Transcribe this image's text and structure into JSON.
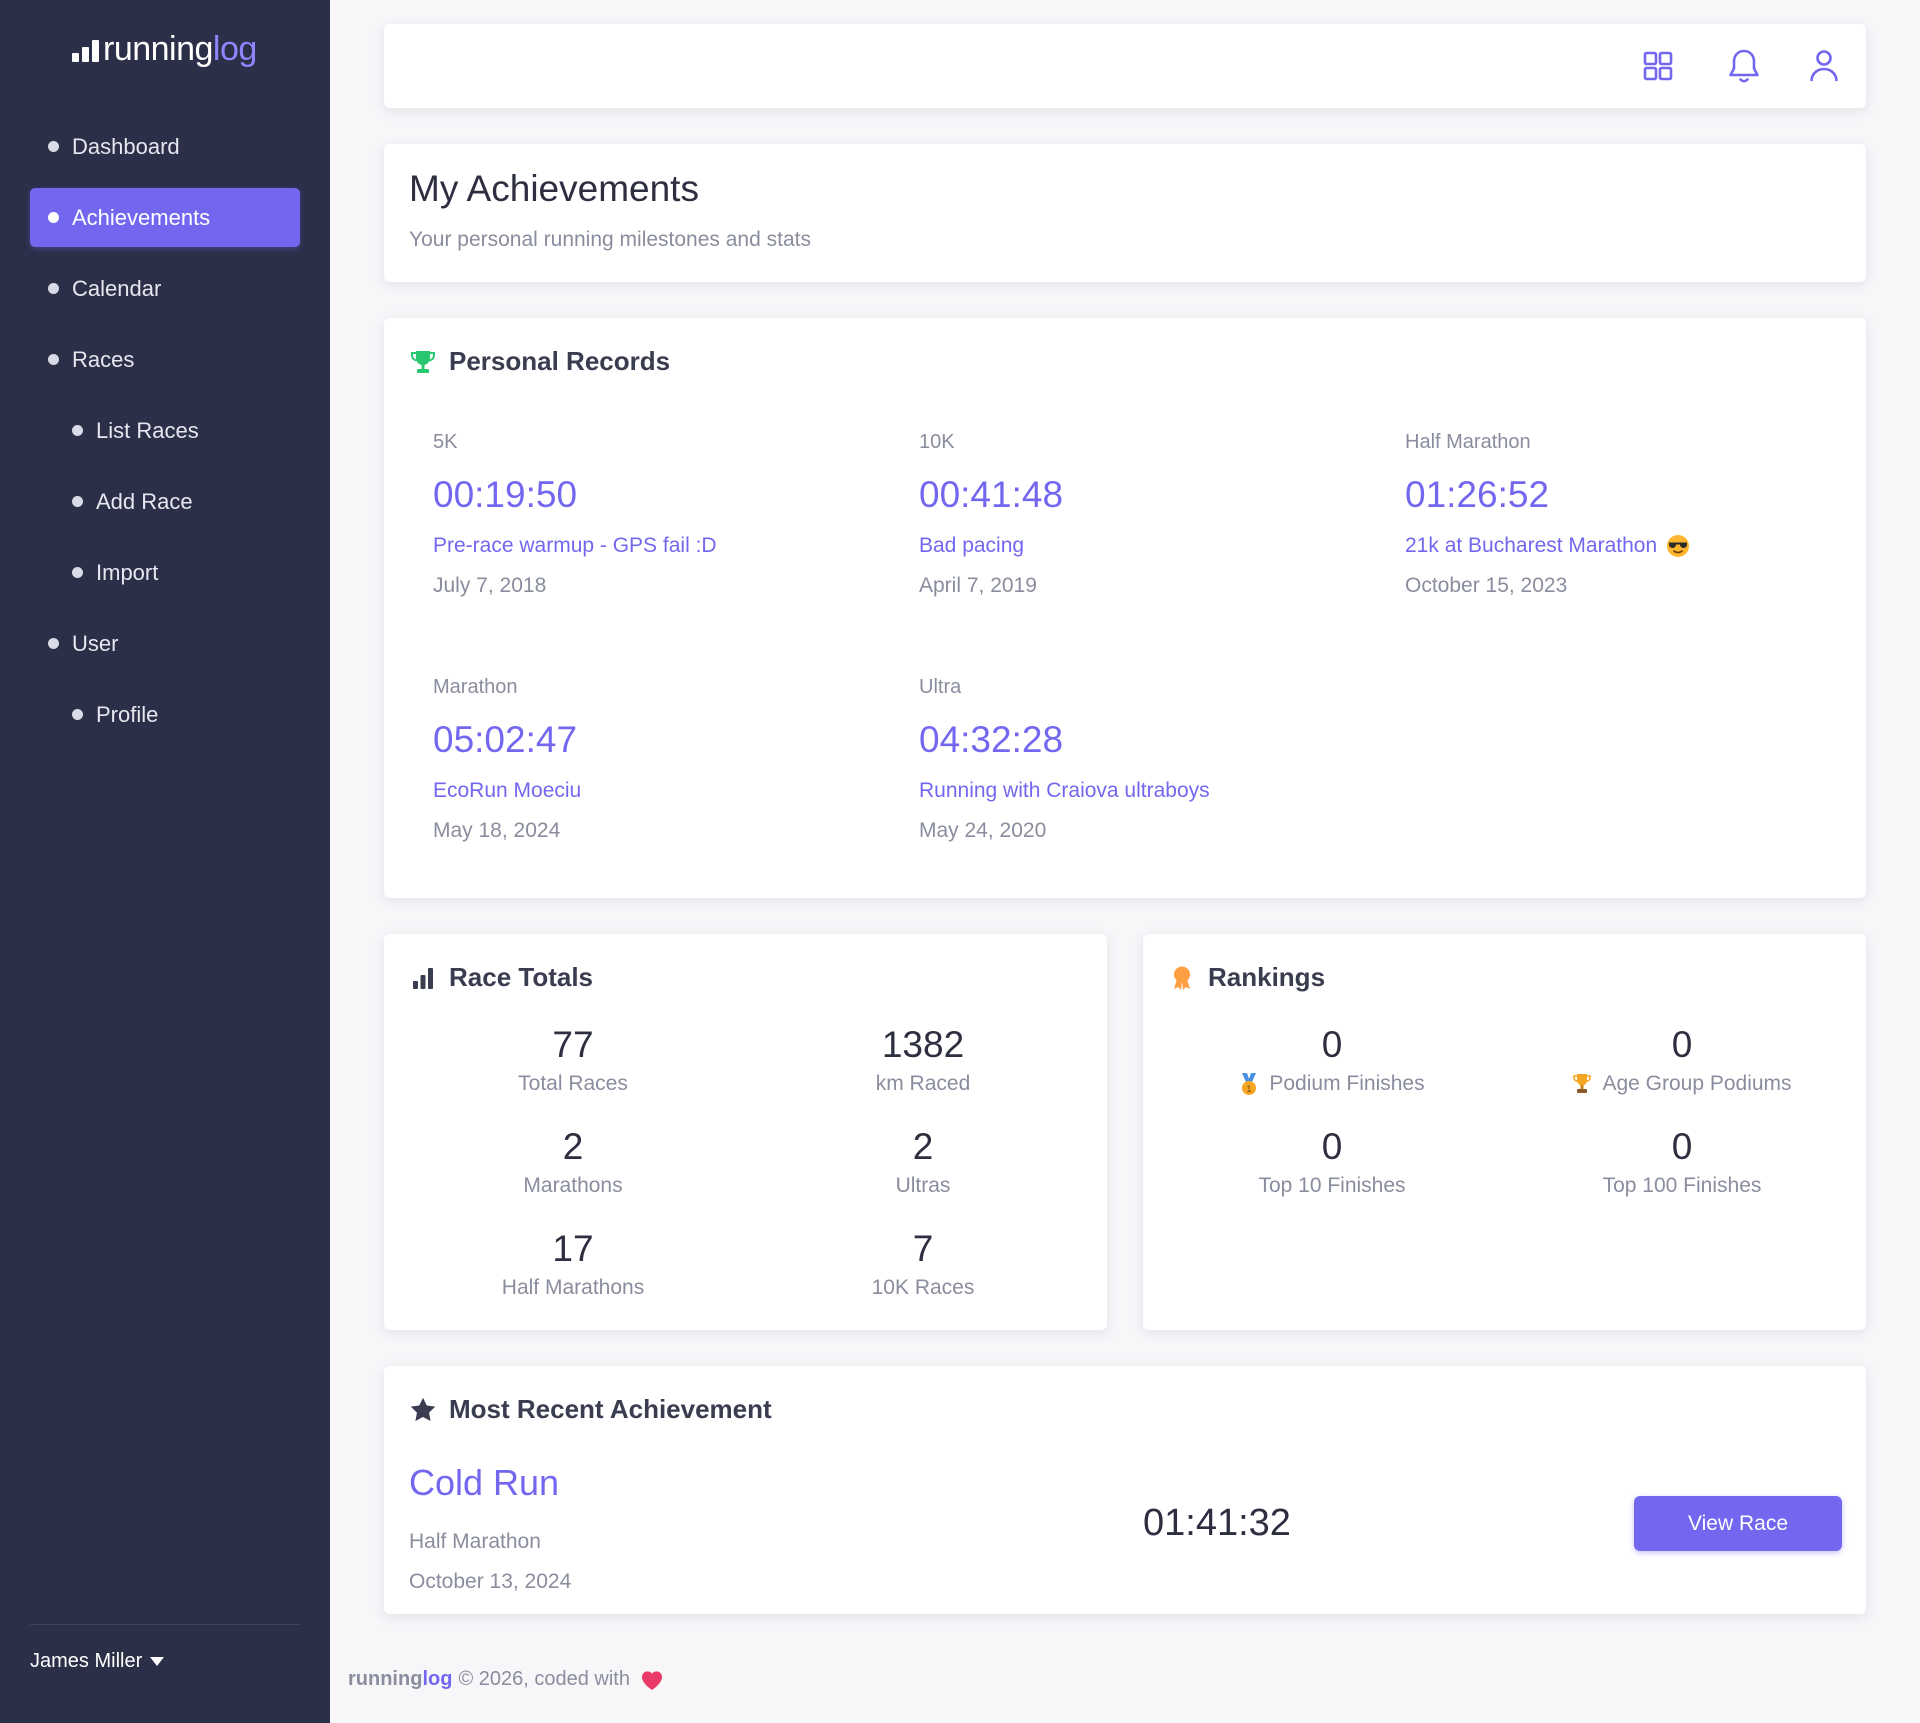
{
  "brand": {
    "word1": "running",
    "word2": "log"
  },
  "sidebar": {
    "items": [
      {
        "label": "Dashboard"
      },
      {
        "label": "Achievements"
      },
      {
        "label": "Calendar"
      },
      {
        "label": "Races"
      },
      {
        "label": "List Races"
      },
      {
        "label": "Add Race"
      },
      {
        "label": "Import"
      },
      {
        "label": "User"
      },
      {
        "label": "Profile"
      }
    ],
    "active": "Achievements",
    "user_name": "James Miller"
  },
  "header": {
    "icons": [
      "grid-icon",
      "bell-icon",
      "user-icon"
    ]
  },
  "page": {
    "title": "My Achievements",
    "subtitle": "Your personal running milestones and stats"
  },
  "personal_records": {
    "title": "Personal Records",
    "items": [
      {
        "distance": "5K",
        "time": "00:19:50",
        "race": "Pre-race warmup - GPS fail :D",
        "date": "July 7, 2018"
      },
      {
        "distance": "10K",
        "time": "00:41:48",
        "race": "Bad pacing",
        "date": "April 7, 2019"
      },
      {
        "distance": "Half Marathon",
        "time": "01:26:52",
        "race": "21k at Bucharest Marathon",
        "date": "October 15, 2023"
      },
      {
        "distance": "Marathon",
        "time": "05:02:47",
        "race": "EcoRun Moeciu",
        "date": "May 18, 2024"
      },
      {
        "distance": "Ultra",
        "time": "04:32:28",
        "race": "Running with Craiova ultraboys",
        "date": "May 24, 2020"
      }
    ]
  },
  "race_totals": {
    "title": "Race Totals",
    "stats": [
      {
        "value": "77",
        "label": "Total Races"
      },
      {
        "value": "1382",
        "label": "km Raced"
      },
      {
        "value": "2",
        "label": "Marathons"
      },
      {
        "value": "2",
        "label": "Ultras"
      },
      {
        "value": "17",
        "label": "Half Marathons"
      },
      {
        "value": "7",
        "label": "10K Races"
      }
    ]
  },
  "rankings": {
    "title": "Rankings",
    "stats": [
      {
        "value": "0",
        "label": "Podium Finishes"
      },
      {
        "value": "0",
        "label": "Age Group Podiums"
      },
      {
        "value": "0",
        "label": "Top 10 Finishes"
      },
      {
        "value": "0",
        "label": "Top 100 Finishes"
      }
    ]
  },
  "recent": {
    "title": "Most Recent Achievement",
    "name": "Cold Run",
    "type": "Half Marathon",
    "date": "October 13, 2024",
    "time": "01:41:32",
    "button": "View Race"
  },
  "footer": {
    "brand1": "running",
    "brand2": "log",
    "text": "© 2026, coded with"
  },
  "colors": {
    "accent": "#7367f0",
    "sidebar": "#2c2f48",
    "trophy": "#28c76f",
    "medal": "#ff9f43"
  }
}
